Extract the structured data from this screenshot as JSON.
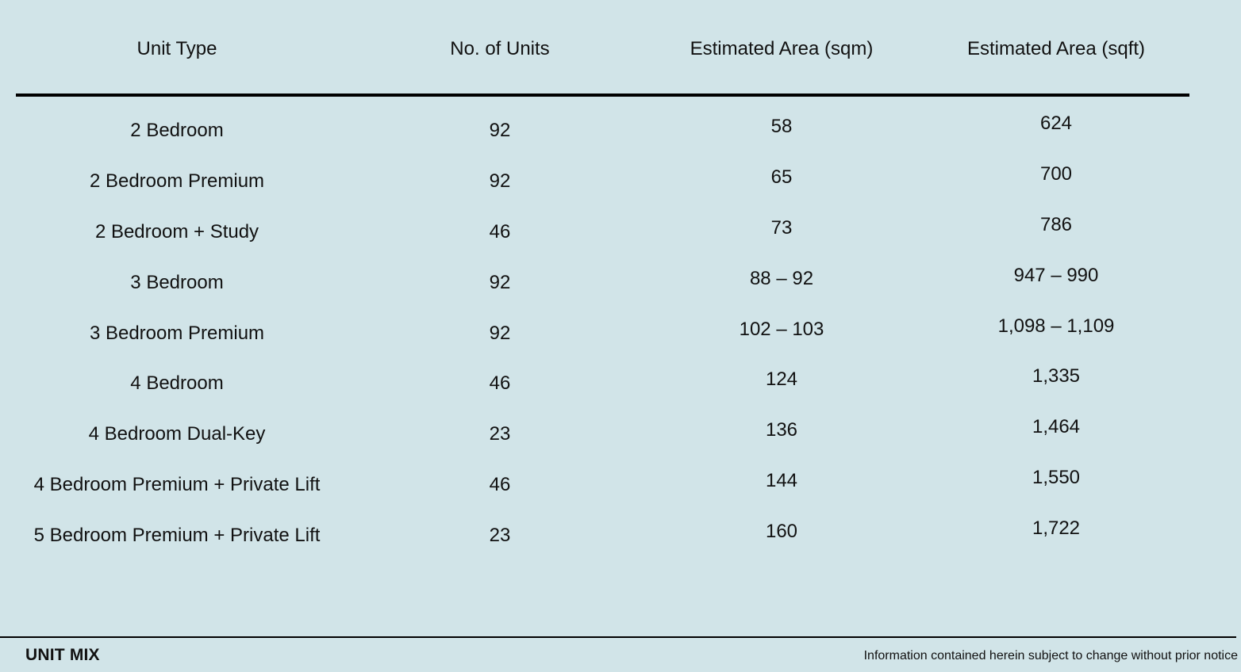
{
  "table": {
    "headers": [
      "Unit Type",
      "No. of Units",
      "Estimated Area (sqm)",
      "Estimated Area (sqft)"
    ],
    "rows": [
      {
        "type": "2 Bedroom",
        "units": "92",
        "sqm": "58",
        "sqft": "624"
      },
      {
        "type": "2 Bedroom Premium",
        "units": "92",
        "sqm": "65",
        "sqft": "700"
      },
      {
        "type": "2 Bedroom + Study",
        "units": "46",
        "sqm": "73",
        "sqft": "786"
      },
      {
        "type": "3 Bedroom",
        "units": "92",
        "sqm": "88 – 92",
        "sqft": "947 – 990"
      },
      {
        "type": "3 Bedroom Premium",
        "units": "92",
        "sqm": "102 – 103",
        "sqft": "1,098 – 1,109"
      },
      {
        "type": "4 Bedroom",
        "units": "46",
        "sqm": "124",
        "sqft": "1,335"
      },
      {
        "type": "4 Bedroom Dual-Key",
        "units": "23",
        "sqm": "136",
        "sqft": "1,464"
      },
      {
        "type": "4 Bedroom Premium + Private Lift",
        "units": "46",
        "sqm": "144",
        "sqft": "1,550"
      },
      {
        "type": "5 Bedroom Premium + Private Lift",
        "units": "23",
        "sqm": "160",
        "sqft": "1,722"
      }
    ]
  },
  "footer": {
    "title": "UNIT MIX",
    "note": "Information contained herein subject to change without prior notice"
  },
  "colors": {
    "background": "#d1e4e8",
    "text": "#111111",
    "rule": "#000000"
  }
}
